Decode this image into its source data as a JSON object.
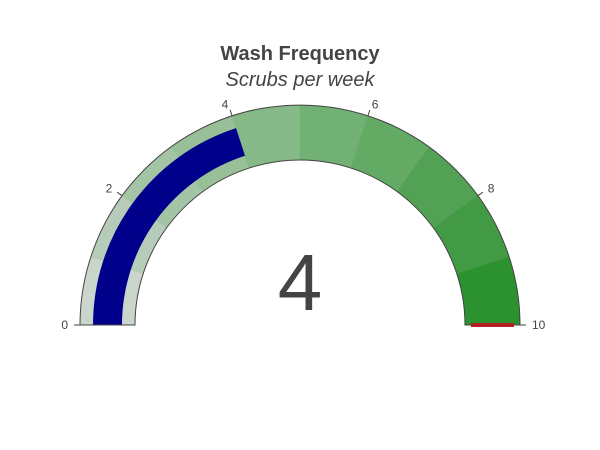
{
  "chart_data": {
    "type": "gauge",
    "title": "Wash Frequency",
    "subtitle": "Scrubs per week",
    "value": 4,
    "value_display": "4",
    "range": [
      0,
      10
    ],
    "ticks": [
      0,
      2,
      4,
      6,
      8,
      10
    ],
    "tick_labels": [
      "0",
      "2",
      "4",
      "6",
      "8",
      "10"
    ],
    "bar_color": "#00008b",
    "threshold": {
      "value": 10,
      "color": "#b22222"
    },
    "steps": [
      {
        "range": [
          0,
          1
        ],
        "color": "#cad5cb"
      },
      {
        "range": [
          1,
          2
        ],
        "color": "#b7ccb8"
      },
      {
        "range": [
          2,
          3
        ],
        "color": "#a4c4a6"
      },
      {
        "range": [
          3,
          4
        ],
        "color": "#97c098"
      },
      {
        "range": [
          4,
          5
        ],
        "color": "#85b987"
      },
      {
        "range": [
          5,
          6
        ],
        "color": "#72b174"
      },
      {
        "range": [
          6,
          7
        ],
        "color": "#63aa65"
      },
      {
        "range": [
          7,
          8
        ],
        "color": "#52a155"
      },
      {
        "range": [
          8,
          9
        ],
        "color": "#439a44"
      },
      {
        "range": [
          9,
          10
        ],
        "color": "#2b922f"
      }
    ]
  }
}
